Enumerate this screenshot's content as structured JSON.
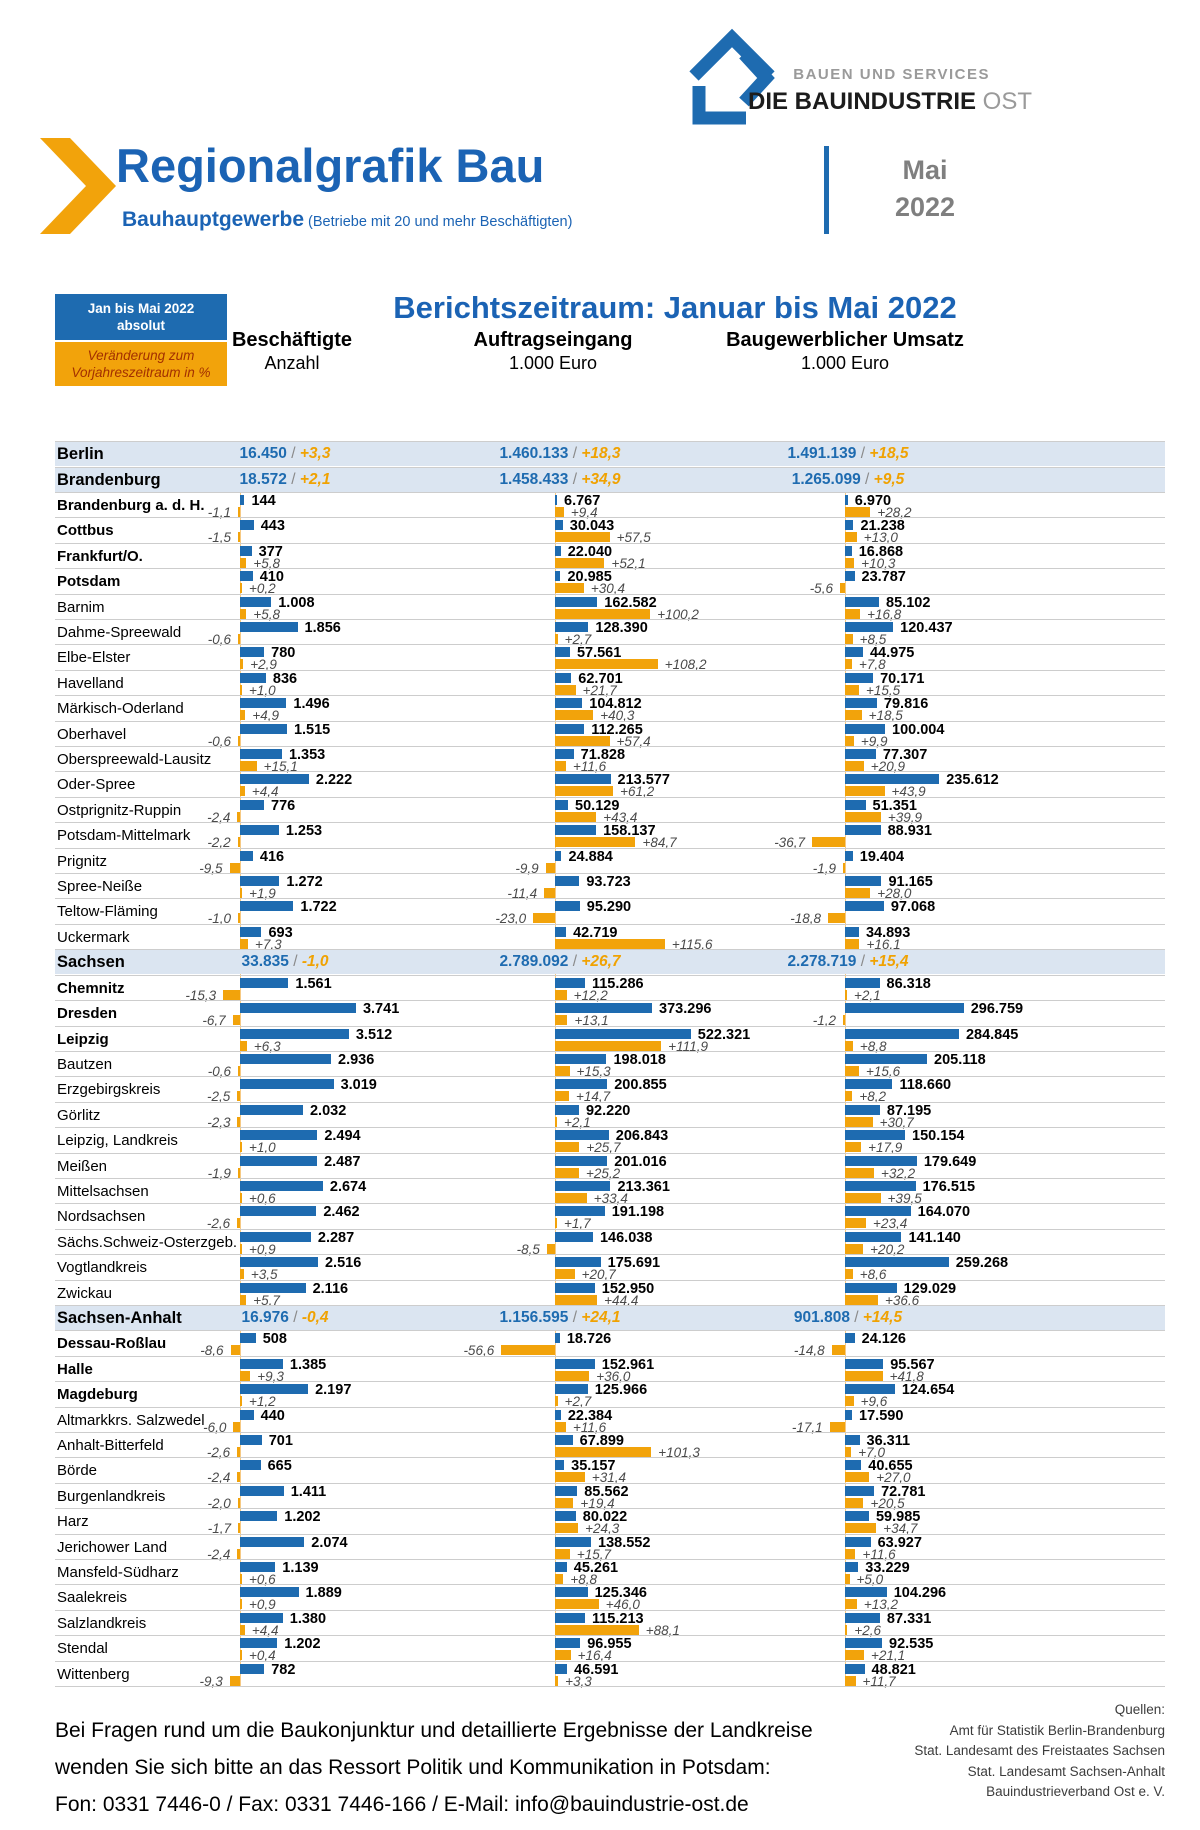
{
  "logo": {
    "services": "BAUEN UND SERVICES",
    "brand": "DIE BAUINDUSTRIE",
    "brand_suffix": " OST"
  },
  "header": {
    "title": "Regionalgrafik Bau",
    "subtitle": "Bauhauptgewerbe",
    "subtitle_note": " (Betriebe mit 20 und mehr Beschäftigten)",
    "period_month": "Mai",
    "period_year": "2022"
  },
  "legend": {
    "absolute_line1": "Jan bis Mai 2022",
    "absolute_line2": "absolut",
    "change_line1": "Veränderung zum",
    "change_line2": "Vorjahreszeitraum in %"
  },
  "report_title": "Berichtszeitraum: Januar bis Mai 2022",
  "chart_data": {
    "type": "bar",
    "title": "Berichtszeitraum: Januar bis Mai 2022",
    "legend_note": "blue bar = Jan bis Mai 2022 absolut, orange bar = Veränderung zum Vorjahreszeitraum in %",
    "columns": [
      {
        "title": "Beschäftigte",
        "unit": "Anzahl"
      },
      {
        "title": "Auftragseingang",
        "unit": "1.000 Euro"
      },
      {
        "title": "Baugewerblicher Umsatz",
        "unit": "1.000 Euro"
      }
    ],
    "rows": [
      {
        "name": "Berlin",
        "type": "summary",
        "cols": [
          [
            "16.450",
            "+3,3"
          ],
          [
            "1.460.133",
            "+18,3"
          ],
          [
            "1.491.139",
            "+18,5"
          ]
        ]
      },
      {
        "name": "Brandenburg",
        "type": "summary",
        "cols": [
          [
            "18.572",
            "+2,1"
          ],
          [
            "1.458.433",
            "+34,9"
          ],
          [
            "1.265.099",
            "+9,5"
          ]
        ]
      },
      {
        "name": "Brandenburg a. d. H.",
        "type": "district",
        "bold": true,
        "cols": [
          [
            "144",
            "-1,1"
          ],
          [
            "6.767",
            "+9,4"
          ],
          [
            "6.970",
            "+28,2"
          ]
        ]
      },
      {
        "name": "Cottbus",
        "type": "district",
        "bold": true,
        "cols": [
          [
            "443",
            "-1,5"
          ],
          [
            "30.043",
            "+57,5"
          ],
          [
            "21.238",
            "+13,0"
          ]
        ]
      },
      {
        "name": "Frankfurt/O.",
        "type": "district",
        "bold": true,
        "cols": [
          [
            "377",
            "+5,8"
          ],
          [
            "22.040",
            "+52,1"
          ],
          [
            "16.868",
            "+10,3"
          ]
        ]
      },
      {
        "name": "Potsdam",
        "type": "district",
        "bold": true,
        "cols": [
          [
            "410",
            "+0,2"
          ],
          [
            "20.985",
            "+30,4"
          ],
          [
            "23.787",
            "-5,6"
          ]
        ]
      },
      {
        "name": "Barnim",
        "type": "district",
        "cols": [
          [
            "1.008",
            "+5,8"
          ],
          [
            "162.582",
            "+100,2"
          ],
          [
            "85.102",
            "+16,8"
          ]
        ]
      },
      {
        "name": "Dahme-Spreewald",
        "type": "district",
        "cols": [
          [
            "1.856",
            "-0,6"
          ],
          [
            "128.390",
            "+2,7"
          ],
          [
            "120.437",
            "+8,5"
          ]
        ]
      },
      {
        "name": "Elbe-Elster",
        "type": "district",
        "cols": [
          [
            "780",
            "+2,9"
          ],
          [
            "57.561",
            "+108,2"
          ],
          [
            "44.975",
            "+7,8"
          ]
        ]
      },
      {
        "name": "Havelland",
        "type": "district",
        "cols": [
          [
            "836",
            "+1,0"
          ],
          [
            "62.701",
            "+21,7"
          ],
          [
            "70.171",
            "+15,5"
          ]
        ]
      },
      {
        "name": "Märkisch-Oderland",
        "type": "district",
        "cols": [
          [
            "1.496",
            "+4,9"
          ],
          [
            "104.812",
            "+40,3"
          ],
          [
            "79.816",
            "+18,5"
          ]
        ]
      },
      {
        "name": "Oberhavel",
        "type": "district",
        "cols": [
          [
            "1.515",
            "-0,6"
          ],
          [
            "112.265",
            "+57,4"
          ],
          [
            "100.004",
            "+9,9"
          ]
        ]
      },
      {
        "name": "Oberspreewald-Lausitz",
        "type": "district",
        "cols": [
          [
            "1.353",
            "+15,1"
          ],
          [
            "71.828",
            "+11,6"
          ],
          [
            "77.307",
            "+20,9"
          ]
        ]
      },
      {
        "name": "Oder-Spree",
        "type": "district",
        "cols": [
          [
            "2.222",
            "+4,4"
          ],
          [
            "213.577",
            "+61,2"
          ],
          [
            "235.612",
            "+43,9"
          ]
        ]
      },
      {
        "name": "Ostprignitz-Ruppin",
        "type": "district",
        "cols": [
          [
            "776",
            "-2,4"
          ],
          [
            "50.129",
            "+43,4"
          ],
          [
            "51.351",
            "+39,9"
          ]
        ]
      },
      {
        "name": "Potsdam-Mittelmark",
        "type": "district",
        "cols": [
          [
            "1.253",
            "-2,2"
          ],
          [
            "158.137",
            "+84,7"
          ],
          [
            "88.931",
            "-36,7"
          ]
        ]
      },
      {
        "name": "Prignitz",
        "type": "district",
        "cols": [
          [
            "416",
            "-9,5"
          ],
          [
            "24.884",
            "-9,9"
          ],
          [
            "19.404",
            "-1,9"
          ]
        ]
      },
      {
        "name": "Spree-Neiße",
        "type": "district",
        "cols": [
          [
            "1.272",
            "+1,9"
          ],
          [
            "93.723",
            "-11,4"
          ],
          [
            "91.165",
            "+28,0"
          ]
        ]
      },
      {
        "name": "Teltow-Fläming",
        "type": "district",
        "cols": [
          [
            "1.722",
            "-1,0"
          ],
          [
            "95.290",
            "-23,0"
          ],
          [
            "97.068",
            "-18,8"
          ]
        ]
      },
      {
        "name": "Uckermark",
        "type": "district",
        "cols": [
          [
            "693",
            "+7,3"
          ],
          [
            "42.719",
            "+115,6"
          ],
          [
            "34.893",
            "+16,1"
          ]
        ]
      },
      {
        "name": "Sachsen",
        "type": "summary",
        "cols": [
          [
            "33.835",
            "-1,0"
          ],
          [
            "2.789.092",
            "+26,7"
          ],
          [
            "2.278.719",
            "+15,4"
          ]
        ]
      },
      {
        "name": "Chemnitz",
        "type": "district",
        "bold": true,
        "cols": [
          [
            "1.561",
            "-15,3"
          ],
          [
            "115.286",
            "+12,2"
          ],
          [
            "86.318",
            "+2,1"
          ]
        ]
      },
      {
        "name": "Dresden",
        "type": "district",
        "bold": true,
        "cols": [
          [
            "3.741",
            "-6,7"
          ],
          [
            "373.296",
            "+13,1"
          ],
          [
            "296.759",
            "-1,2"
          ]
        ]
      },
      {
        "name": "Leipzig",
        "type": "district",
        "bold": true,
        "cols": [
          [
            "3.512",
            "+6,3"
          ],
          [
            "522.321",
            "+111,9"
          ],
          [
            "284.845",
            "+8,8"
          ]
        ]
      },
      {
        "name": "Bautzen",
        "type": "district",
        "cols": [
          [
            "2.936",
            "-0,6"
          ],
          [
            "198.018",
            "+15,3"
          ],
          [
            "205.118",
            "+15,6"
          ]
        ]
      },
      {
        "name": "Erzgebirgskreis",
        "type": "district",
        "cols": [
          [
            "3.019",
            "-2,5"
          ],
          [
            "200.855",
            "+14,7"
          ],
          [
            "118.660",
            "+8,2"
          ]
        ]
      },
      {
        "name": "Görlitz",
        "type": "district",
        "cols": [
          [
            "2.032",
            "-2,3"
          ],
          [
            "92.220",
            "+2,1"
          ],
          [
            "87.195",
            "+30,7"
          ]
        ]
      },
      {
        "name": "Leipzig, Landkreis",
        "type": "district",
        "cols": [
          [
            "2.494",
            "+1,0"
          ],
          [
            "206.843",
            "+25,7"
          ],
          [
            "150.154",
            "+17,9"
          ]
        ]
      },
      {
        "name": "Meißen",
        "type": "district",
        "cols": [
          [
            "2.487",
            "-1,9"
          ],
          [
            "201.016",
            "+25,2"
          ],
          [
            "179.649",
            "+32,2"
          ]
        ]
      },
      {
        "name": "Mittelsachsen",
        "type": "district",
        "cols": [
          [
            "2.674",
            "+0,6"
          ],
          [
            "213.361",
            "+33,4"
          ],
          [
            "176.515",
            "+39,5"
          ]
        ]
      },
      {
        "name": "Nordsachsen",
        "type": "district",
        "cols": [
          [
            "2.462",
            "-2,6"
          ],
          [
            "191.198",
            "+1,7"
          ],
          [
            "164.070",
            "+23,4"
          ]
        ]
      },
      {
        "name": "Sächs.Schweiz-Osterzgeb.",
        "type": "district",
        "cols": [
          [
            "2.287",
            "+0,9"
          ],
          [
            "146.038",
            "-8,5"
          ],
          [
            "141.140",
            "+20,2"
          ]
        ]
      },
      {
        "name": "Vogtlandkreis",
        "type": "district",
        "cols": [
          [
            "2.516",
            "+3,5"
          ],
          [
            "175.691",
            "+20,7"
          ],
          [
            "259.268",
            "+8,6"
          ]
        ]
      },
      {
        "name": "Zwickau",
        "type": "district",
        "cols": [
          [
            "2.116",
            "+5,7"
          ],
          [
            "152.950",
            "+44,4"
          ],
          [
            "129.029",
            "+36,6"
          ]
        ]
      },
      {
        "name": "Sachsen-Anhalt",
        "type": "summary",
        "cols": [
          [
            "16.976",
            "-0,4"
          ],
          [
            "1.156.595",
            "+24,1"
          ],
          [
            "901.808",
            "+14,5"
          ]
        ]
      },
      {
        "name": "Dessau-Roßlau",
        "type": "district",
        "bold": true,
        "cols": [
          [
            "508",
            "-8,6"
          ],
          [
            "18.726",
            "-56,6"
          ],
          [
            "24.126",
            "-14,8"
          ]
        ]
      },
      {
        "name": "Halle",
        "type": "district",
        "bold": true,
        "cols": [
          [
            "1.385",
            "+9,3"
          ],
          [
            "152.961",
            "+36,0"
          ],
          [
            "95.567",
            "+41,8"
          ]
        ]
      },
      {
        "name": "Magdeburg",
        "type": "district",
        "bold": true,
        "cols": [
          [
            "2.197",
            "+1,2"
          ],
          [
            "125.966",
            "+2,7"
          ],
          [
            "124.654",
            "+9,6"
          ]
        ]
      },
      {
        "name": "Altmarkkrs. Salzwedel",
        "type": "district",
        "cols": [
          [
            "440",
            "-6,0"
          ],
          [
            "22.384",
            "+11,6"
          ],
          [
            "17.590",
            "-17,1"
          ]
        ]
      },
      {
        "name": "Anhalt-Bitterfeld",
        "type": "district",
        "cols": [
          [
            "701",
            "-2,6"
          ],
          [
            "67.899",
            "+101,3"
          ],
          [
            "36.311",
            "+7,0"
          ]
        ]
      },
      {
        "name": "Börde",
        "type": "district",
        "cols": [
          [
            "665",
            "-2,4"
          ],
          [
            "35.157",
            "+31,4"
          ],
          [
            "40.655",
            "+27,0"
          ]
        ]
      },
      {
        "name": "Burgenlandkreis",
        "type": "district",
        "cols": [
          [
            "1.411",
            "-2,0"
          ],
          [
            "85.562",
            "+19,4"
          ],
          [
            "72.781",
            "+20,5"
          ]
        ]
      },
      {
        "name": "Harz",
        "type": "district",
        "cols": [
          [
            "1.202",
            "-1,7"
          ],
          [
            "80.022",
            "+24,3"
          ],
          [
            "59.985",
            "+34,7"
          ]
        ]
      },
      {
        "name": "Jerichower Land",
        "type": "district",
        "cols": [
          [
            "2.074",
            "-2,4"
          ],
          [
            "138.552",
            "+15,7"
          ],
          [
            "63.927",
            "+11,6"
          ]
        ]
      },
      {
        "name": "Mansfeld-Südharz",
        "type": "district",
        "cols": [
          [
            "1.139",
            "+0,6"
          ],
          [
            "45.261",
            "+8,8"
          ],
          [
            "33.229",
            "+5,0"
          ]
        ]
      },
      {
        "name": "Saalekreis",
        "type": "district",
        "cols": [
          [
            "1.889",
            "+0,9"
          ],
          [
            "125.346",
            "+46,0"
          ],
          [
            "104.296",
            "+13,2"
          ]
        ]
      },
      {
        "name": "Salzlandkreis",
        "type": "district",
        "cols": [
          [
            "1.380",
            "+4,4"
          ],
          [
            "115.213",
            "+88,1"
          ],
          [
            "87.331",
            "+2,6"
          ]
        ]
      },
      {
        "name": "Stendal",
        "type": "district",
        "cols": [
          [
            "1.202",
            "+0,4"
          ],
          [
            "96.955",
            "+16,4"
          ],
          [
            "92.535",
            "+21,1"
          ]
        ]
      },
      {
        "name": "Wittenberg",
        "type": "district",
        "cols": [
          [
            "782",
            "-9,3"
          ],
          [
            "46.591",
            "+3,3"
          ],
          [
            "48.821",
            "+11,7"
          ]
        ]
      }
    ]
  },
  "colors": {
    "bar_blue": "#1e6bb0",
    "bar_orange": "#f2a30b",
    "summary_row_bg": "#dbe5f1",
    "title_blue": "#1b63b4",
    "summary_pct_orange": "#f0a202",
    "legend_change_text": "#a33000"
  },
  "footer": {
    "contact_line1": "Bei Fragen rund um die Baukonjunktur und detaillierte Ergebnisse der Landkreise",
    "contact_line2": "wenden Sie sich bitte an das Ressort Politik und Kommunikation in Potsdam:",
    "contact_line3": "Fon: 0331 7446-0 / Fax: 0331 7446-166 / E-Mail: info@bauindustrie-ost.de",
    "sources_title": "Quellen:",
    "sources": [
      "Amt für Statistik Berlin-Brandenburg",
      "Stat. Landesamt des Freistaates Sachsen",
      "Stat. Landesamt Sachsen-Anhalt",
      "Bauindustrieverband Ost e. V."
    ]
  }
}
